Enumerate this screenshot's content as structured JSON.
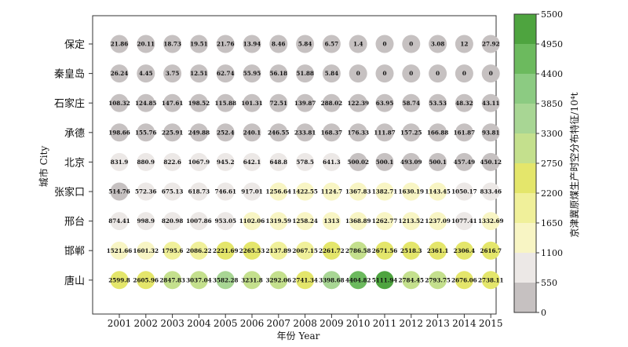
{
  "chart_data": {
    "type": "bubble-grid",
    "xlabel": "年份 Year",
    "ylabel": "城市 City",
    "colorbar_label": "京津冀原煤生产时空分布特征/10⁴t",
    "x": [
      "2001",
      "2002",
      "2003",
      "2004",
      "2005",
      "2006",
      "2007",
      "2008",
      "2009",
      "2010",
      "2011",
      "2012",
      "2013",
      "2014",
      "2015"
    ],
    "cities": [
      "保定",
      "秦皇岛",
      "石家庄",
      "承德",
      "北京",
      "张家口",
      "邢台",
      "邯郸",
      "唐山"
    ],
    "values": [
      [
        21.86,
        20.11,
        18.73,
        19.51,
        21.76,
        13.94,
        8.46,
        5.84,
        6.57,
        1.4,
        0,
        0,
        3.08,
        12,
        27.92
      ],
      [
        26.24,
        4.45,
        3.75,
        12.51,
        62.74,
        55.95,
        56.18,
        51.88,
        5.84,
        0,
        0,
        0,
        0,
        0,
        0
      ],
      [
        108.32,
        124.85,
        147.61,
        198.52,
        115.88,
        101.31,
        72.51,
        139.87,
        288.02,
        122.39,
        63.95,
        58.74,
        53.53,
        48.32,
        43.11
      ],
      [
        198.66,
        155.76,
        225.91,
        249.88,
        252.4,
        240.1,
        246.55,
        233.81,
        168.37,
        176.33,
        111.87,
        157.25,
        166.88,
        161.87,
        93.81
      ],
      [
        831.9,
        880.9,
        822.6,
        1067.9,
        945.2,
        642.1,
        648.8,
        578.5,
        641.3,
        500.02,
        500.1,
        493.09,
        500.1,
        457.49,
        450.12
      ],
      [
        514.76,
        572.36,
        675.13,
        618.73,
        746.61,
        917.01,
        1256.64,
        1422.55,
        1124.7,
        1367.83,
        1382.71,
        1630.19,
        1143.45,
        1050.17,
        833.46
      ],
      [
        874.41,
        998.9,
        820.98,
        1007.86,
        953.05,
        1102.06,
        1319.59,
        1258.24,
        1313,
        1368.89,
        1262.77,
        1213.52,
        1237.09,
        1077.41,
        1332.69
      ],
      [
        1521.66,
        1601.32,
        1795.6,
        2086.22,
        2221.69,
        2265.53,
        2137.89,
        2067.15,
        2261.72,
        2786.58,
        2671.56,
        2518.3,
        2361.1,
        2306.4,
        2616.7
      ],
      [
        2599.8,
        2605.96,
        2847.83,
        3037.04,
        3582.28,
        3231.8,
        3292.06,
        2741.34,
        3398.68,
        4404.82,
        5111.94,
        2784.45,
        2793.75,
        2676.06,
        2738.11
      ]
    ],
    "colorbar": {
      "range": [
        0,
        5500
      ],
      "ticks": [
        "5500",
        "4950",
        "4400",
        "3850",
        "3300",
        "2750",
        "2200",
        "1650",
        "1100",
        "550",
        "0"
      ],
      "bins": [
        {
          "from": 0,
          "to": 550,
          "color": "#c6c1c1"
        },
        {
          "from": 550,
          "to": 1100,
          "color": "#ece8e6"
        },
        {
          "from": 1100,
          "to": 1650,
          "color": "#f8f5c4"
        },
        {
          "from": 1650,
          "to": 2200,
          "color": "#f0f09a"
        },
        {
          "from": 2200,
          "to": 2750,
          "color": "#e4e66b"
        },
        {
          "from": 2750,
          "to": 3300,
          "color": "#c4e08d"
        },
        {
          "from": 3300,
          "to": 3850,
          "color": "#a8d694"
        },
        {
          "from": 3850,
          "to": 4400,
          "color": "#8ccb82"
        },
        {
          "from": 4400,
          "to": 4950,
          "color": "#6cba5e"
        },
        {
          "from": 4950,
          "to": 5500,
          "color": "#4ea43f"
        }
      ]
    },
    "grid": false
  }
}
